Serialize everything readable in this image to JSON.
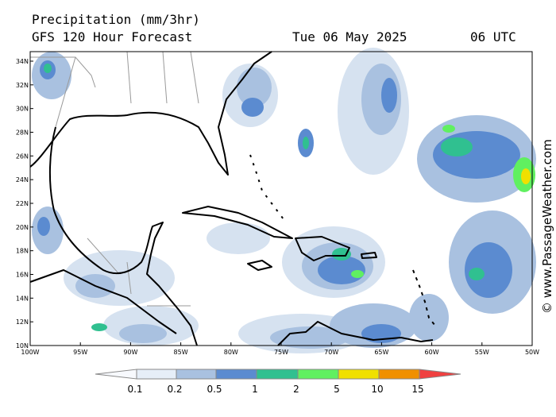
{
  "header": {
    "title": "Precipitation (mm/3hr)",
    "subtitle": "GFS 120 Hour Forecast",
    "date": "Tue 06 May 2025",
    "time": "06 UTC"
  },
  "map": {
    "lat_labels": [
      "34N",
      "32N",
      "30N",
      "28N",
      "26N",
      "24N",
      "22N",
      "20N",
      "18N",
      "16N",
      "14N",
      "12N",
      "10N"
    ],
    "lon_labels": [
      "100W",
      "95W",
      "90W",
      "85W",
      "80W",
      "75W",
      "70W",
      "65W",
      "60W",
      "55W",
      "50W"
    ]
  },
  "legend": {
    "labels": [
      "0.1",
      "0.2",
      "0.5",
      "1",
      "2",
      "5",
      "10",
      "15"
    ]
  },
  "credit": "© www.PassageWeather.com"
}
